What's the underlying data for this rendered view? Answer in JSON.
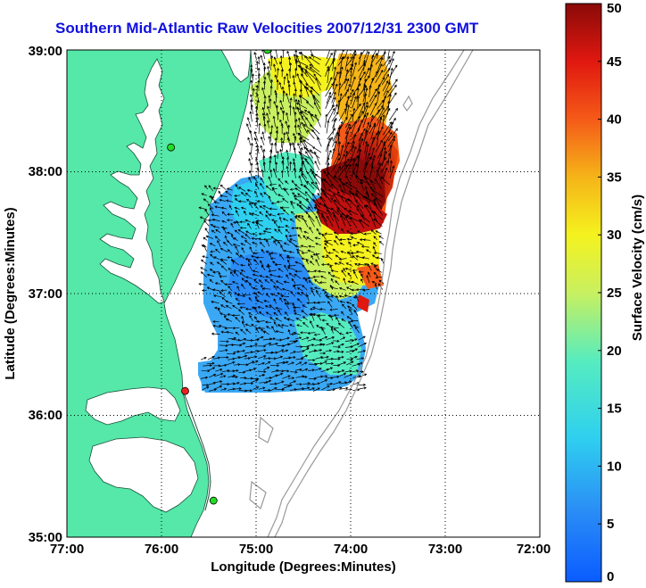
{
  "title": "Southern Mid-Atlantic Raw Velocities 2007/12/31 2300 GMT",
  "colors": {
    "land": "#55e8a8",
    "ocean": "#ffffff",
    "bathymetry": "#999999",
    "grid": "#000000"
  },
  "map": {
    "lon_range": [
      -77,
      -72
    ],
    "lat_range": [
      35,
      39
    ],
    "x_ticks": [
      "77:00",
      "76:00",
      "75:00",
      "74:00",
      "73:00",
      "72:00"
    ],
    "y_ticks": [
      "35:00",
      "36:00",
      "37:00",
      "38:00",
      "39:00"
    ],
    "xlabel": "Longitude (Degrees:Minutes)",
    "ylabel": "Latitude (Degrees:Minutes)",
    "grid": "dotted"
  },
  "colorbar": {
    "label": "Surface Velocity (cm/s)",
    "min": 0,
    "max": 50,
    "ticks": [
      "0",
      "5",
      "10",
      "15",
      "20",
      "25",
      "30",
      "35",
      "40",
      "45",
      "50"
    ]
  },
  "stations": [
    {
      "lon": -74.88,
      "lat": 39.0,
      "status": "green"
    },
    {
      "lon": -75.9,
      "lat": 38.2,
      "status": "green"
    },
    {
      "lon": -75.75,
      "lat": 36.2,
      "status": "red"
    },
    {
      "lon": -75.45,
      "lat": 35.3,
      "status": "green"
    }
  ]
}
